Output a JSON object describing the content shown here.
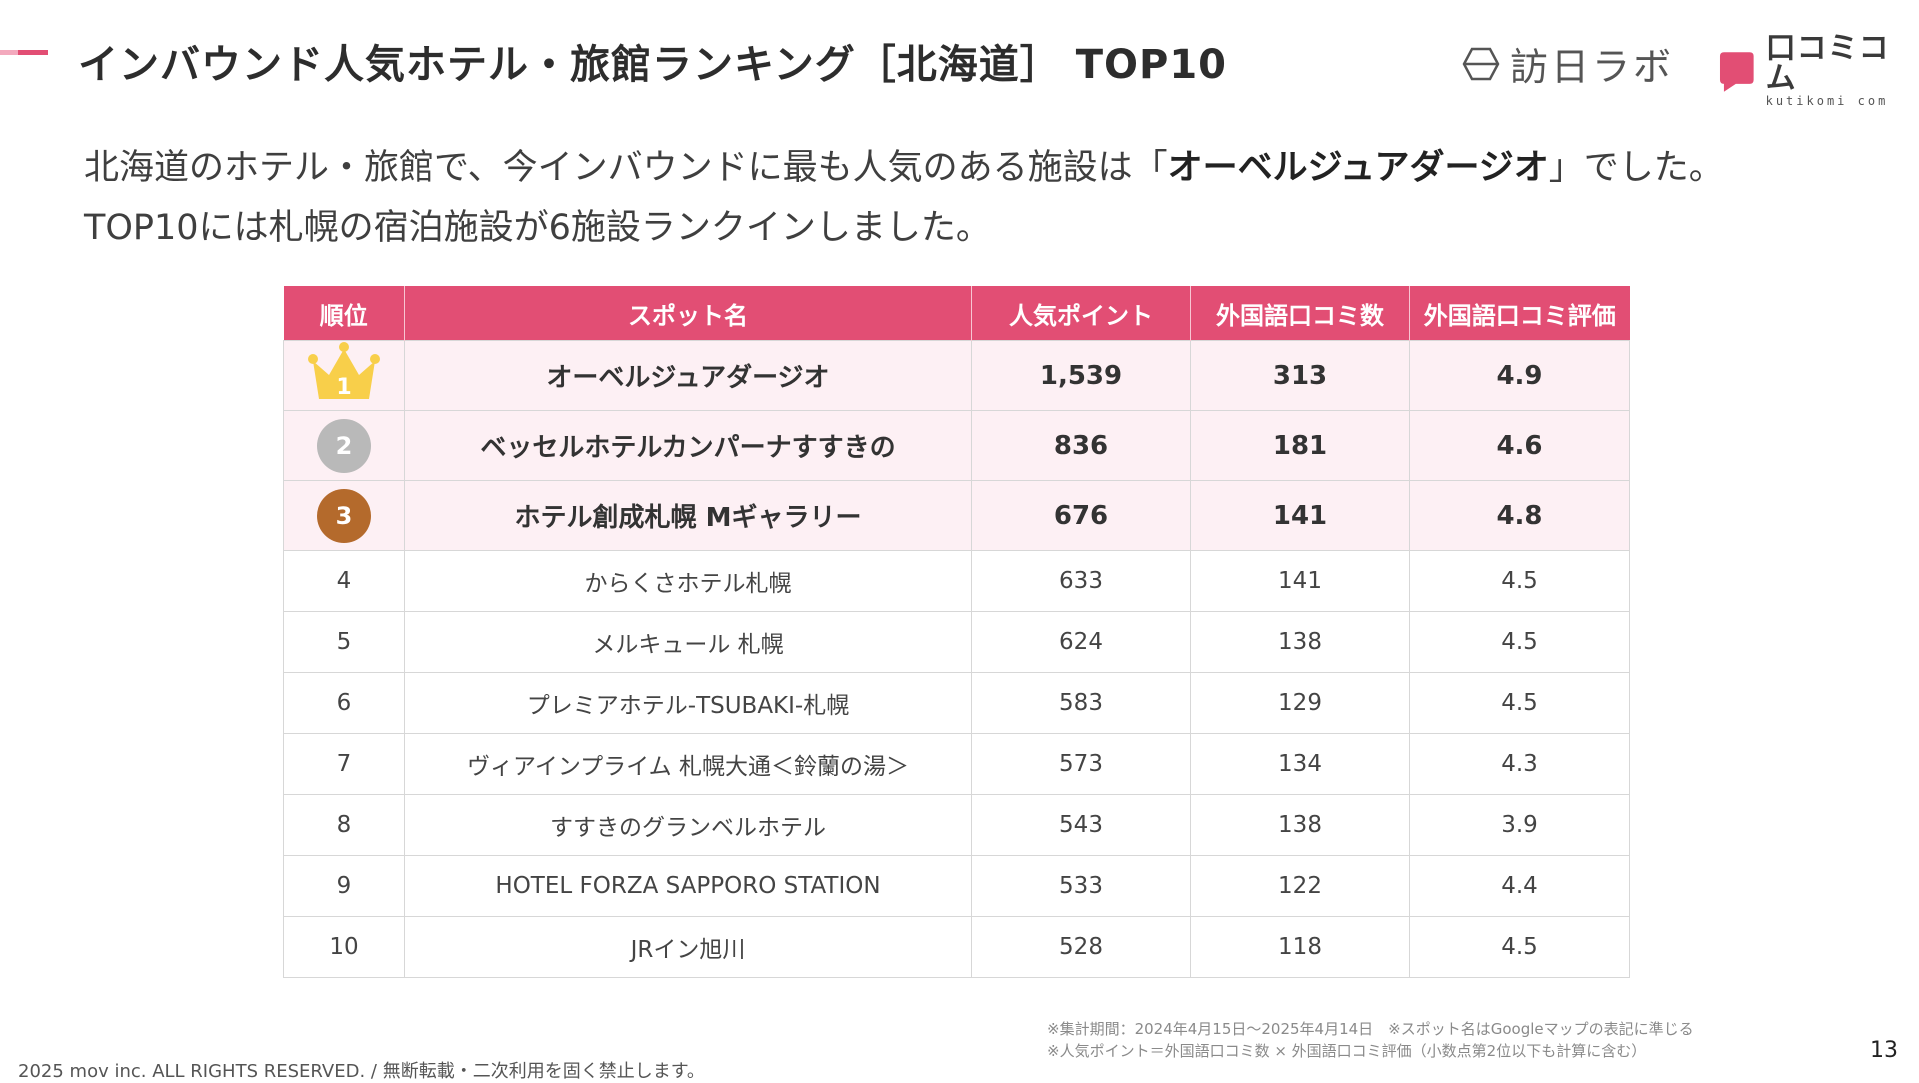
{
  "header": {
    "title": "インバウンド人気ホテル・旅館ランキング［北海道］ TOP10",
    "logo_houninchi": "訪日ラボ",
    "logo_kutikomi_name": "口コミコム",
    "logo_kutikomi_sub": "kutikomi com"
  },
  "intro": {
    "line1_before": "北海道のホテル・旅館で、今インバウンドに最も人気のある施設は「",
    "line1_highlight": "オーベルジュアダージオ",
    "line1_after": "」でした。",
    "line2": "TOP10には札幌の宿泊施設が6施設ランクインしました。"
  },
  "table": {
    "headers": [
      "順位",
      "スポット名",
      "人気ポイント",
      "外国語口コミ数",
      "外国語口コミ評価"
    ],
    "rows": [
      {
        "rank": "1",
        "name": "オーベルジュアダージオ",
        "points": "1,539",
        "reviews": "313",
        "rating": "4.9"
      },
      {
        "rank": "2",
        "name": "ベッセルホテルカンパーナすすきの",
        "points": "836",
        "reviews": "181",
        "rating": "4.6"
      },
      {
        "rank": "3",
        "name": "ホテル創成札幌 Mギャラリー",
        "points": "676",
        "reviews": "141",
        "rating": "4.8"
      },
      {
        "rank": "4",
        "name": "からくさホテル札幌",
        "points": "633",
        "reviews": "141",
        "rating": "4.5"
      },
      {
        "rank": "5",
        "name": "メルキュール 札幌",
        "points": "624",
        "reviews": "138",
        "rating": "4.5"
      },
      {
        "rank": "6",
        "name": "プレミアホテル-TSUBAKI-札幌",
        "points": "583",
        "reviews": "129",
        "rating": "4.5"
      },
      {
        "rank": "7",
        "name": "ヴィアインプライム 札幌大通＜鈴蘭の湯＞",
        "points": "573",
        "reviews": "134",
        "rating": "4.3"
      },
      {
        "rank": "8",
        "name": "すすきのグランベルホテル",
        "points": "543",
        "reviews": "138",
        "rating": "3.9"
      },
      {
        "rank": "9",
        "name": "HOTEL FORZA SAPPORO STATION",
        "points": "533",
        "reviews": "122",
        "rating": "4.4"
      },
      {
        "rank": "10",
        "name": "JRイン旭川",
        "points": "528",
        "reviews": "118",
        "rating": "4.5"
      }
    ]
  },
  "notes": {
    "line1": "※集計期間：2024年4月15日〜2025年4月14日　※スポット名はGoogleマップの表記に準じる",
    "line2": "※人気ポイント＝外国語口コミ数 × 外国語口コミ評価（小数点第2位以下も計算に含む）"
  },
  "footer": {
    "copyright": "2025 mov inc. ALL RIGHTS RESERVED. / 無断転載・二次利用を固く禁止します。",
    "page_number": "13"
  },
  "colors": {
    "accent": "#e24e74",
    "accent_light": "#f3a9bd",
    "top_row_bg": "#fdf0f4",
    "gold": "#f8cf4a",
    "silver": "#b9b9b9",
    "bronze": "#b46a2c"
  },
  "icons": {
    "rank1": "gold-crown-icon",
    "rank2": "silver-medal-icon",
    "rank3": "bronze-medal-icon"
  }
}
